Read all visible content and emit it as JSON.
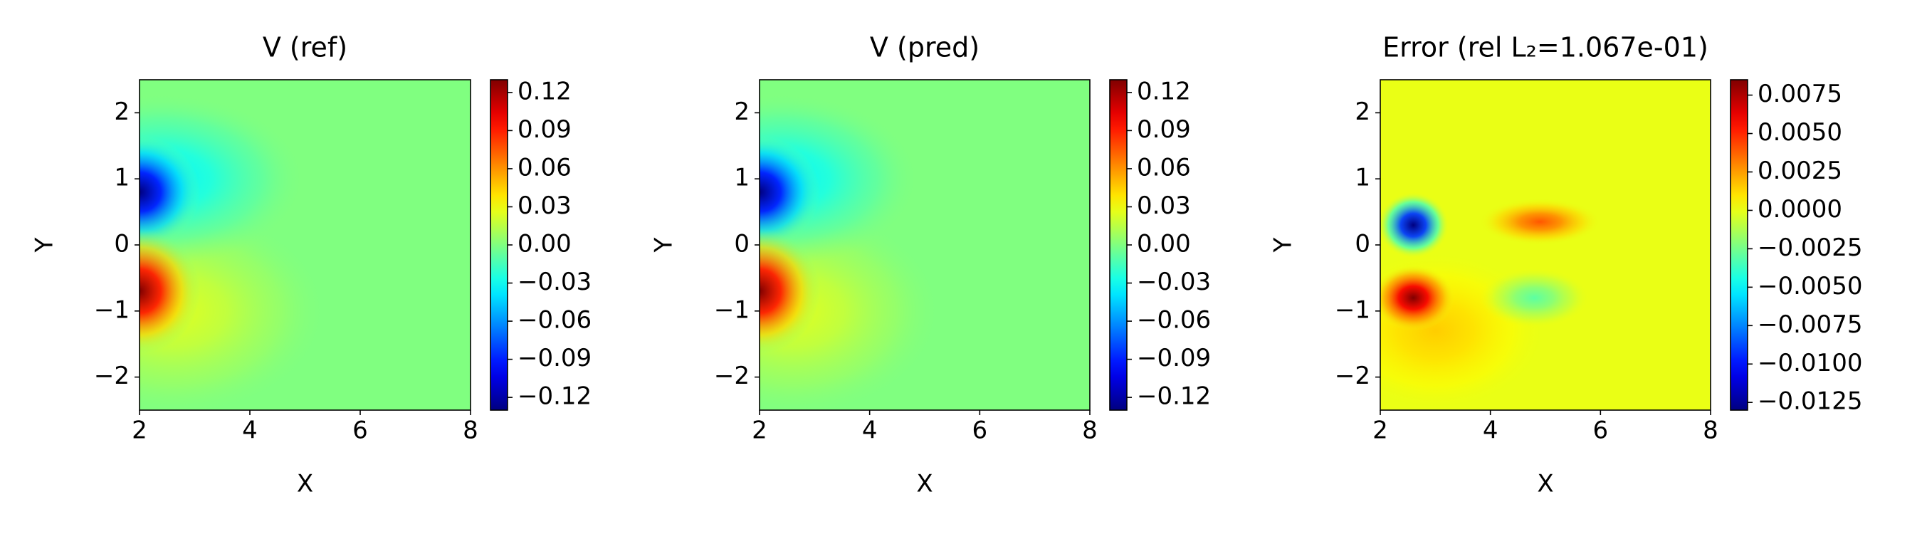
{
  "chart_data": [
    {
      "type": "contour",
      "title": "V (ref)",
      "xlabel": "X",
      "ylabel": "Y",
      "colormap": "jet",
      "xlim": [
        2,
        8
      ],
      "ylim": [
        -2.5,
        2.5
      ],
      "xticks": [
        2,
        4,
        6,
        8
      ],
      "yticks": [
        {
          "value": -2,
          "label": "−2"
        },
        {
          "value": -1,
          "label": "−1"
        },
        0,
        1,
        2
      ],
      "clim": [
        -0.13,
        0.13
      ],
      "cticks": [
        0.12,
        0.09,
        0.06,
        0.03,
        {
          "value": 0,
          "label": "0.00"
        },
        {
          "value": -0.03,
          "label": "−0.03"
        },
        {
          "value": -0.06,
          "label": "−0.06"
        },
        {
          "value": -0.09,
          "label": "−0.09"
        },
        {
          "value": -0.12,
          "label": "−0.12"
        }
      ],
      "base_value": 0,
      "peaks": [
        {
          "x": 2.6,
          "y": -1.0,
          "value": 0.025,
          "rx": 2.8,
          "ry": 1.6
        },
        {
          "x": 2.4,
          "y": 1.0,
          "value": -0.035,
          "rx": 2.6,
          "ry": 1.3
        },
        {
          "x": 2.0,
          "y": 0.8,
          "value": -0.13,
          "rx": 1.1,
          "ry": 0.85
        },
        {
          "x": 2.0,
          "y": -0.7,
          "value": 0.13,
          "rx": 1.1,
          "ry": 0.95
        }
      ]
    },
    {
      "type": "contour",
      "title": "V (pred)",
      "xlabel": "X",
      "ylabel": "Y",
      "colormap": "jet",
      "xlim": [
        2,
        8
      ],
      "ylim": [
        -2.5,
        2.5
      ],
      "xticks": [
        2,
        4,
        6,
        8
      ],
      "yticks": [
        {
          "value": -2,
          "label": "−2"
        },
        {
          "value": -1,
          "label": "−1"
        },
        0,
        1,
        2
      ],
      "clim": [
        -0.13,
        0.13
      ],
      "cticks": [
        0.12,
        0.09,
        0.06,
        0.03,
        {
          "value": 0,
          "label": "0.00"
        },
        {
          "value": -0.03,
          "label": "−0.03"
        },
        {
          "value": -0.06,
          "label": "−0.06"
        },
        {
          "value": -0.09,
          "label": "−0.09"
        },
        {
          "value": -0.12,
          "label": "−0.12"
        }
      ],
      "base_value": 0,
      "peaks": [
        {
          "x": 2.6,
          "y": -1.0,
          "value": 0.025,
          "rx": 2.7,
          "ry": 1.6
        },
        {
          "x": 2.4,
          "y": 1.0,
          "value": -0.035,
          "rx": 2.5,
          "ry": 1.3
        },
        {
          "x": 2.0,
          "y": 0.8,
          "value": -0.13,
          "rx": 1.1,
          "ry": 0.85
        },
        {
          "x": 2.0,
          "y": -0.7,
          "value": 0.13,
          "rx": 1.1,
          "ry": 0.95
        }
      ]
    },
    {
      "type": "contour",
      "title": "Error (rel L₂=1.067e-01)",
      "xlabel": "X",
      "ylabel": "Y",
      "colormap": "jet",
      "xlim": [
        2,
        8
      ],
      "ylim": [
        -2.5,
        2.5
      ],
      "xticks": [
        2,
        4,
        6,
        8
      ],
      "yticks": [
        {
          "value": -2,
          "label": "−2"
        },
        {
          "value": -1,
          "label": "−1"
        },
        0,
        1,
        2
      ],
      "clim": [
        -0.013,
        0.0085
      ],
      "cticks": [
        0.0075,
        {
          "value": 0.005,
          "label": "0.0050"
        },
        0.0025,
        {
          "value": 0,
          "label": "0.0000"
        },
        {
          "value": -0.0025,
          "label": "−0.0025"
        },
        {
          "value": -0.005,
          "label": "−0.0050"
        },
        {
          "value": -0.0075,
          "label": "−0.0075"
        },
        {
          "value": -0.01,
          "label": "−0.0100"
        },
        {
          "value": -0.0125,
          "label": "−0.0125"
        }
      ],
      "base_value": 0,
      "peaks": [
        {
          "x": 3.0,
          "y": -1.3,
          "value": 0.0015,
          "rx": 2.0,
          "ry": 1.2
        },
        {
          "x": 4.8,
          "y": -0.8,
          "value": -0.003,
          "rx": 1.0,
          "ry": 0.45
        },
        {
          "x": 4.9,
          "y": 0.35,
          "value": 0.004,
          "rx": 1.1,
          "ry": 0.35
        },
        {
          "x": 2.6,
          "y": 0.3,
          "value": -0.013,
          "rx": 0.65,
          "ry": 0.5
        },
        {
          "x": 2.6,
          "y": -0.8,
          "value": 0.0085,
          "rx": 0.75,
          "ry": 0.5
        }
      ]
    }
  ]
}
